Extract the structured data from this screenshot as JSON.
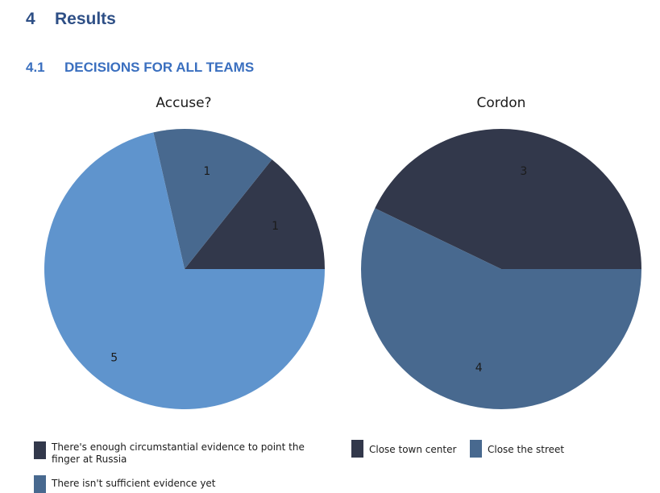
{
  "heading": {
    "number": "4",
    "text": "Results"
  },
  "subheading": {
    "number": "4.1",
    "text": "DECISIONS FOR ALL TEAMS"
  },
  "colors": {
    "dark": "#32384b",
    "medium": "#48698f",
    "light": "#5f94cd"
  },
  "chart_data": [
    {
      "type": "pie",
      "title": "Accuse?",
      "slices": [
        {
          "label": "There's enough circumstantial evidence to point the finger at Russia",
          "value": 1,
          "color": "#32384b"
        },
        {
          "label": "There isn't sufficient evidence yet",
          "value": 1,
          "color": "#48698f"
        },
        {
          "label": "",
          "value": 5,
          "color": "#5f94cd"
        }
      ],
      "legend_lines": [
        [
          "There's enough circumstantial evidence to point the",
          "finger at Russia"
        ],
        [
          "There isn't sufficient evidence yet"
        ]
      ]
    },
    {
      "type": "pie",
      "title": "Cordon",
      "slices": [
        {
          "label": "Close town center",
          "value": 3,
          "color": "#32384b"
        },
        {
          "label": "Close the street",
          "value": 4,
          "color": "#48698f"
        }
      ]
    }
  ]
}
